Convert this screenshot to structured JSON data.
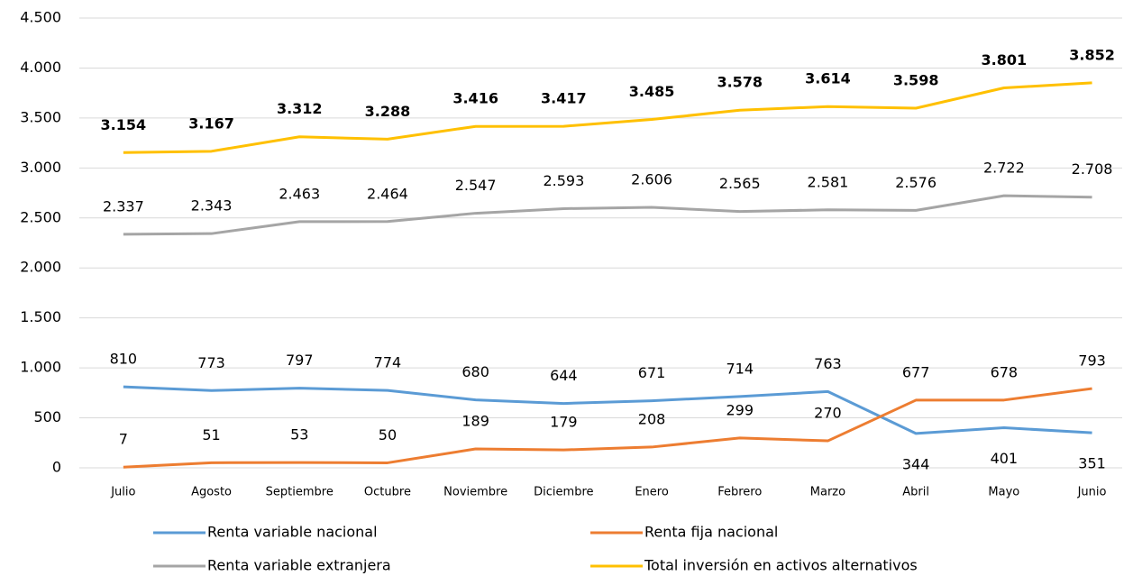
{
  "chart_data": {
    "type": "line",
    "categories": [
      "Julio",
      "Agosto",
      "Septiembre",
      "Octubre",
      "Noviembre",
      "Diciembre",
      "Enero",
      "Febrero",
      "Marzo",
      "Abril",
      "Mayo",
      "Junio"
    ],
    "series": [
      {
        "name": "Renta variable nacional",
        "color": "#5b9bd5",
        "values": [
          810,
          773,
          797,
          774,
          680,
          644,
          671,
          714,
          763,
          344,
          401,
          351
        ]
      },
      {
        "name": "Renta fija nacional",
        "color": "#ed7d31",
        "values": [
          7,
          51,
          53,
          50,
          189,
          179,
          208,
          299,
          270,
          677,
          678,
          793
        ]
      },
      {
        "name": "Renta variable extranjera",
        "color": "#a5a5a5",
        "values": [
          2337,
          2343,
          2463,
          2464,
          2547,
          2593,
          2606,
          2565,
          2581,
          2576,
          2722,
          2708
        ],
        "value_labels": [
          "2.337",
          "2.343",
          "2.463",
          "2.464",
          "2.547",
          "2.593",
          "2.606",
          "2.565",
          "2.581",
          "2.576",
          "2.722",
          "2.708"
        ]
      },
      {
        "name": "Total inversión en activos alternativos",
        "color": "#ffc000",
        "values": [
          3154,
          3167,
          3312,
          3288,
          3416,
          3417,
          3485,
          3578,
          3614,
          3598,
          3801,
          3852
        ],
        "value_labels": [
          "3.154",
          "3.167",
          "3.312",
          "3.288",
          "3.416",
          "3.417",
          "3.485",
          "3.578",
          "3.614",
          "3.598",
          "3.801",
          "3.852"
        ]
      }
    ],
    "ylim": [
      0,
      4500
    ],
    "yticks": [
      0,
      500,
      {
        "value": 1000,
        "label": "1.000"
      },
      {
        "value": 1500,
        "label": "1.500"
      },
      {
        "value": 2000,
        "label": "2.000"
      },
      {
        "value": 2500,
        "label": "2.500"
      },
      {
        "value": 3000,
        "label": "3.000"
      },
      {
        "value": 3500,
        "label": "3.500"
      },
      {
        "value": 4000,
        "label": "4.000"
      },
      {
        "value": 4500,
        "label": "4.500"
      }
    ],
    "grid": true,
    "legend": "bottom"
  }
}
